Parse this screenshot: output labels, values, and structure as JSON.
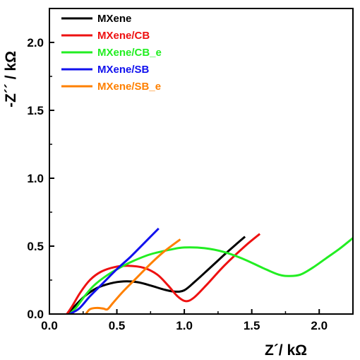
{
  "chart_data": {
    "type": "line",
    "xlabel": "Z´/ kΩ",
    "ylabel": "-Z´´ / kΩ",
    "xlim": [
      0.0,
      2.25
    ],
    "ylim": [
      0.0,
      2.25
    ],
    "xticks": [
      "0.0",
      "0.5",
      "1.0",
      "1.5",
      "2.0"
    ],
    "yticks": [
      "0.0",
      "0.5",
      "1.0",
      "1.5",
      "2.0"
    ],
    "grid": false,
    "legend_position": "top-left",
    "series": [
      {
        "name": "MXene",
        "color": "#000000",
        "points": [
          [
            0.13,
            0.0
          ],
          [
            0.18,
            0.05
          ],
          [
            0.26,
            0.13
          ],
          [
            0.35,
            0.19
          ],
          [
            0.45,
            0.225
          ],
          [
            0.55,
            0.24
          ],
          [
            0.65,
            0.235
          ],
          [
            0.75,
            0.21
          ],
          [
            0.85,
            0.18
          ],
          [
            0.93,
            0.165
          ],
          [
            1.0,
            0.175
          ],
          [
            1.08,
            0.24
          ],
          [
            1.18,
            0.33
          ],
          [
            1.3,
            0.44
          ],
          [
            1.38,
            0.51
          ],
          [
            1.45,
            0.57
          ]
        ]
      },
      {
        "name": "MXene/CB",
        "color": "#ee1111",
        "points": [
          [
            0.13,
            0.0
          ],
          [
            0.17,
            0.06
          ],
          [
            0.23,
            0.16
          ],
          [
            0.3,
            0.25
          ],
          [
            0.38,
            0.31
          ],
          [
            0.48,
            0.345
          ],
          [
            0.58,
            0.355
          ],
          [
            0.7,
            0.34
          ],
          [
            0.8,
            0.29
          ],
          [
            0.88,
            0.21
          ],
          [
            0.95,
            0.13
          ],
          [
            1.01,
            0.095
          ],
          [
            1.07,
            0.12
          ],
          [
            1.17,
            0.22
          ],
          [
            1.3,
            0.36
          ],
          [
            1.45,
            0.5
          ],
          [
            1.56,
            0.59
          ]
        ]
      },
      {
        "name": "MXene/CB_e",
        "color": "#22ee22",
        "points": [
          [
            0.15,
            0.0
          ],
          [
            0.2,
            0.05
          ],
          [
            0.26,
            0.13
          ],
          [
            0.33,
            0.21
          ],
          [
            0.42,
            0.28
          ],
          [
            0.52,
            0.34
          ],
          [
            0.62,
            0.39
          ],
          [
            0.75,
            0.44
          ],
          [
            0.9,
            0.475
          ],
          [
            1.0,
            0.49
          ],
          [
            1.15,
            0.485
          ],
          [
            1.3,
            0.455
          ],
          [
            1.45,
            0.4
          ],
          [
            1.58,
            0.34
          ],
          [
            1.7,
            0.29
          ],
          [
            1.78,
            0.28
          ],
          [
            1.86,
            0.29
          ],
          [
            1.95,
            0.34
          ],
          [
            2.05,
            0.41
          ],
          [
            2.15,
            0.48
          ],
          [
            2.25,
            0.56
          ]
        ]
      },
      {
        "name": "MXene/SB",
        "color": "#1111ee",
        "points": [
          [
            0.15,
            0.0
          ],
          [
            0.22,
            0.04
          ],
          [
            0.3,
            0.13
          ],
          [
            0.4,
            0.23
          ],
          [
            0.5,
            0.33
          ],
          [
            0.6,
            0.42
          ],
          [
            0.7,
            0.52
          ],
          [
            0.81,
            0.63
          ]
        ]
      },
      {
        "name": "MXene/SB_e",
        "color": "#ff8000",
        "points": [
          [
            0.27,
            0.0
          ],
          [
            0.3,
            0.035
          ],
          [
            0.35,
            0.045
          ],
          [
            0.4,
            0.04
          ],
          [
            0.43,
            0.035
          ],
          [
            0.47,
            0.08
          ],
          [
            0.55,
            0.17
          ],
          [
            0.65,
            0.27
          ],
          [
            0.75,
            0.37
          ],
          [
            0.85,
            0.46
          ],
          [
            0.97,
            0.55
          ]
        ]
      }
    ]
  }
}
